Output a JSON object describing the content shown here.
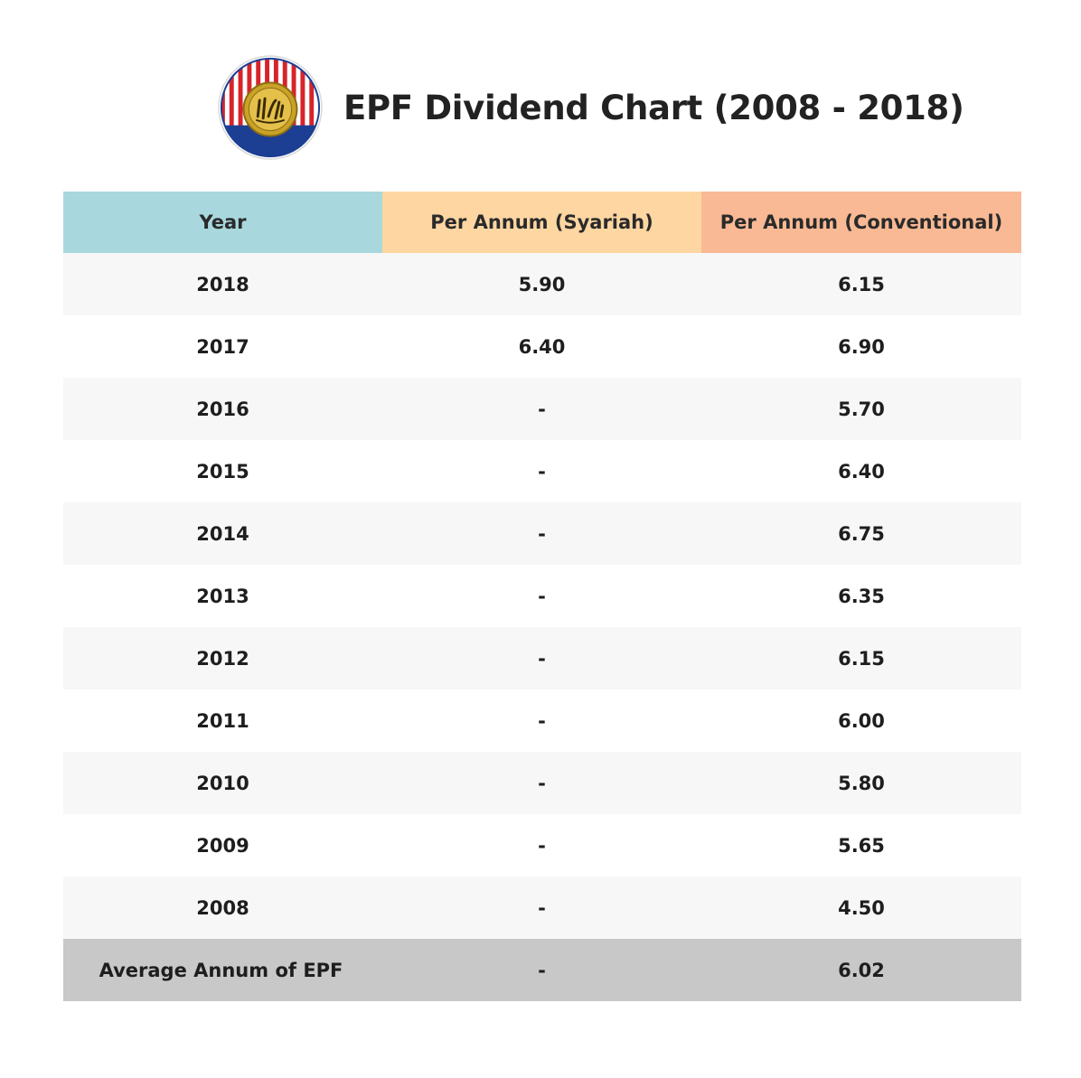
{
  "header": {
    "title": "EPF Dividend Chart (2008 - 2018)",
    "logo_icon": "kwsp-logo"
  },
  "colors": {
    "year_header": "#a8d8de",
    "syariah_header": "#fed6a2",
    "conventional_header": "#f9b994",
    "footer_row": "#c9c8c9",
    "logo_red": "#d8232a",
    "logo_blue": "#1c3f94",
    "logo_gold": "#c9a227"
  },
  "chart_data": {
    "type": "table",
    "columns": [
      "Year",
      "Per Annum (Syariah)",
      "Per Annum (Conventional)"
    ],
    "rows": [
      {
        "year": "2018",
        "syariah": "5.90",
        "conventional": "6.15"
      },
      {
        "year": "2017",
        "syariah": "6.40",
        "conventional": "6.90"
      },
      {
        "year": "2016",
        "syariah": "-",
        "conventional": "5.70"
      },
      {
        "year": "2015",
        "syariah": "-",
        "conventional": "6.40"
      },
      {
        "year": "2014",
        "syariah": "-",
        "conventional": "6.75"
      },
      {
        "year": "2013",
        "syariah": "-",
        "conventional": "6.35"
      },
      {
        "year": "2012",
        "syariah": "-",
        "conventional": "6.15"
      },
      {
        "year": "2011",
        "syariah": "-",
        "conventional": "6.00"
      },
      {
        "year": "2010",
        "syariah": "-",
        "conventional": "5.80"
      },
      {
        "year": "2009",
        "syariah": "-",
        "conventional": "5.65"
      },
      {
        "year": "2008",
        "syariah": "-",
        "conventional": "4.50"
      }
    ],
    "footer": {
      "label": "Average Annum of EPF",
      "syariah": "-",
      "conventional": "6.02"
    }
  }
}
